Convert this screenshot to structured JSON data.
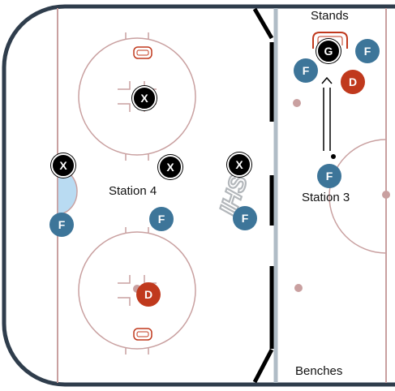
{
  "labels": {
    "stands": "Stands",
    "benches": "Benches",
    "station_4": "Station 4",
    "station_3": "Station 3",
    "logo": "IHS"
  },
  "markers": {
    "x": "X",
    "f": "F",
    "d": "D",
    "g": "G"
  },
  "colors": {
    "boards": "#2f3d4c",
    "red_line": "#c9a0a0",
    "blue_line": "#b0bcc6",
    "crease": "#b9dbf2",
    "forward": "#3d7599",
    "defense": "#c0391d",
    "coach": "#000000"
  }
}
